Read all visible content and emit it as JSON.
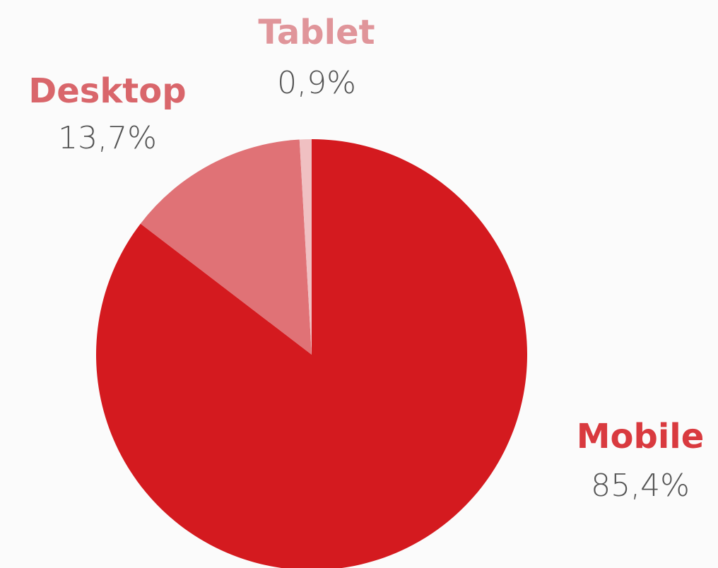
{
  "chart_data": {
    "type": "pie",
    "categories": [
      "Mobile",
      "Desktop",
      "Tablet"
    ],
    "values": [
      85.4,
      13.7,
      0.9
    ],
    "value_labels": [
      "85,4%",
      "13,7%",
      "0,9%"
    ],
    "colors": [
      "#d41a1f",
      "#e07276",
      "#f0c0c2"
    ],
    "label_colors": [
      "#d93a3f",
      "#d9666b",
      "#e0959a"
    ]
  }
}
